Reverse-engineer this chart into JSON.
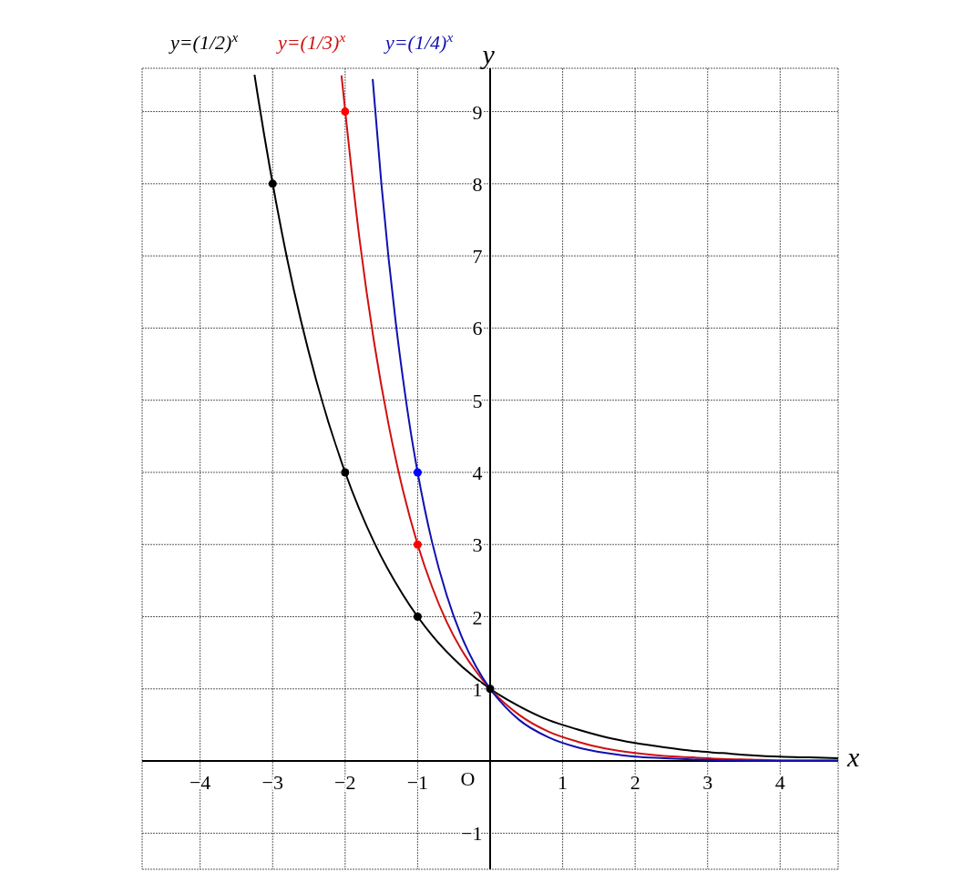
{
  "chart_data": {
    "type": "line",
    "xlabel": "x",
    "ylabel": "y",
    "xlim": [
      -4.8,
      4.8
    ],
    "ylim": [
      -1.5,
      9.6
    ],
    "xticks": [
      -4,
      -3,
      -2,
      -1,
      {
        "value": 0,
        "label": null
      },
      1,
      2,
      3,
      4
    ],
    "annotations": [
      "O"
    ],
    "yticks": [
      -1,
      {
        "value": 0,
        "label": null
      },
      1,
      2,
      3,
      4,
      5,
      6,
      7,
      8,
      9
    ],
    "grid": true,
    "legend": "top left",
    "marker": "none",
    "series": [
      {
        "name": "y=(1/2)$^{x}$",
        "color": "#000000",
        "x": [
          -3.25,
          -3.2,
          -2.8,
          -2.4,
          -2.0,
          -1.6,
          -1.2,
          -0.8,
          -0.4,
          0,
          0.4,
          0.8,
          1.2,
          1.6,
          2.0,
          2.4,
          2.8,
          3.2,
          3.6,
          4.0,
          4.4,
          4.8
        ],
        "values": [
          9.51,
          9.19,
          6.96,
          5.28,
          4,
          3.03,
          2.3,
          1.74,
          1.32,
          1,
          0.76,
          0.57,
          0.44,
          0.33,
          0.25,
          0.19,
          0.14,
          0.11,
          0.08,
          0.06,
          0.05,
          0.04
        ]
      },
      {
        "name": "y=(1/3)$^{x}$",
        "color": "#d01010",
        "x": [
          -2.05,
          -1.8,
          -1.6,
          -1.4,
          -1.2,
          -1.0,
          -0.8,
          -0.6,
          -0.4,
          -0.2,
          0,
          0.4,
          0.8,
          1.2,
          1.6,
          2.0,
          2.4,
          2.8,
          3.2,
          3.6,
          4.0,
          4.8
        ],
        "values": [
          9.5,
          7.22,
          5.8,
          4.66,
          3.74,
          3,
          2.41,
          1.93,
          1.55,
          1.25,
          1,
          0.64,
          0.41,
          0.27,
          0.17,
          0.11,
          0.07,
          0.05,
          0.03,
          0.02,
          0.01,
          0.01
        ]
      },
      {
        "name": "y=(1/4)$^{x}$",
        "color": "#1010b0",
        "x": [
          -1.62,
          -1.5,
          -1.4,
          -1.3,
          -1.2,
          -1.1,
          -1.0,
          -0.8,
          -0.6,
          -0.4,
          -0.2,
          0,
          0.2,
          0.4,
          0.8,
          1.2,
          1.6,
          2.0,
          2.4,
          3.2,
          4.0,
          4.8
        ],
        "values": [
          9.45,
          8,
          6.96,
          6.06,
          5.28,
          4.59,
          4,
          3.03,
          2.3,
          1.74,
          1.32,
          1,
          0.76,
          0.57,
          0.33,
          0.19,
          0.11,
          0.06,
          0.04,
          0.01,
          0,
          0
        ]
      },
      {
        "type": "scatter",
        "color": "#ff0000",
        "marker": "circle",
        "x": [
          -2,
          -1
        ],
        "values": [
          9,
          3
        ]
      },
      {
        "type": "scatter",
        "color": "#0000ff",
        "marker": "circle",
        "x": [
          -1
        ],
        "values": [
          4
        ]
      },
      {
        "type": "scatter",
        "color": "#000000",
        "marker": "circle",
        "x": [
          -3,
          -2,
          -1,
          0
        ],
        "values": [
          8,
          4,
          2,
          1
        ]
      }
    ]
  }
}
